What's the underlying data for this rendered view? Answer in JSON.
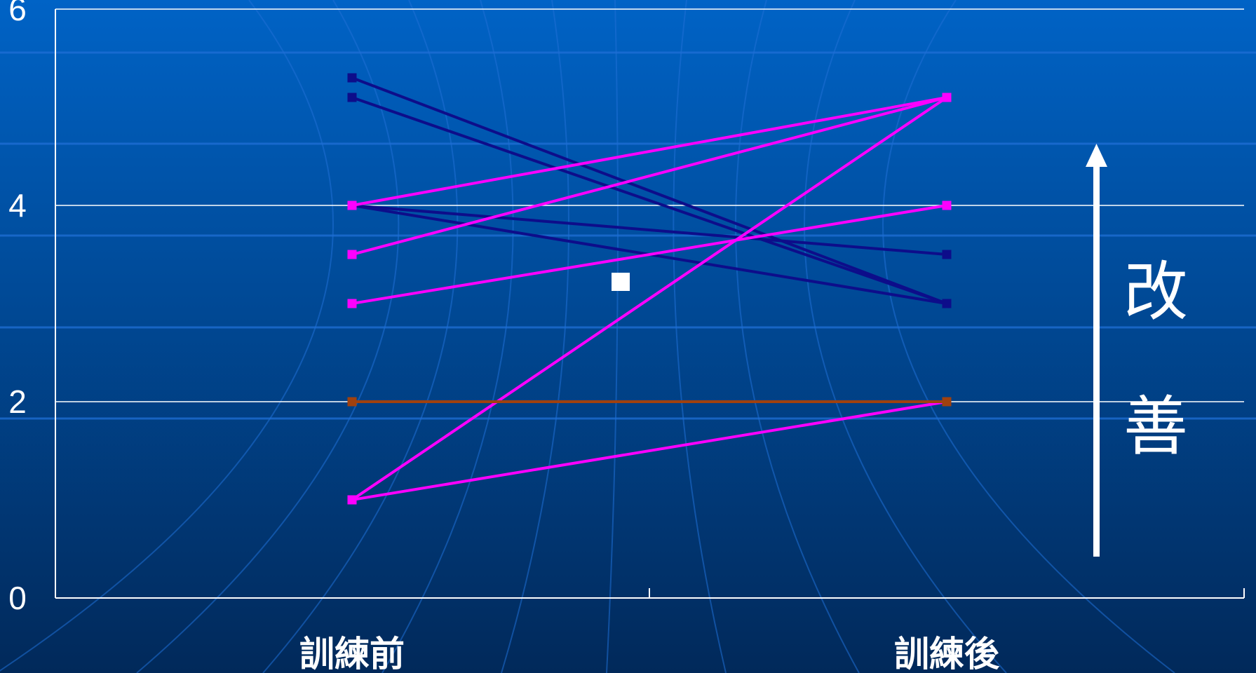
{
  "colors": {
    "background_top": "#0063c6",
    "background_bottom": "#01295a",
    "decor_lines": "#1f6fd6",
    "axis": "#ffffff",
    "decreased": "#0d0d8a",
    "increased": "#ff00ff",
    "unchanged": "#a0410f"
  },
  "chart_data": {
    "type": "line",
    "categories": [
      "訓練前",
      "訓練後"
    ],
    "ylim": [
      0,
      6
    ],
    "y_ticks": [
      "0",
      "2",
      "4",
      "6"
    ],
    "grid": true,
    "legend_marker": "square",
    "series": [
      {
        "values": [
          5.3,
          3.0
        ],
        "color": "#0d0d8a"
      },
      {
        "values": [
          5.1,
          3.0
        ],
        "color": "#0d0d8a"
      },
      {
        "values": [
          4.0,
          3.5
        ],
        "color": "#0d0d8a"
      },
      {
        "values": [
          4.0,
          3.0
        ],
        "color": "#0d0d8a"
      },
      {
        "values": [
          4.0,
          5.1
        ],
        "color": "#ff00ff"
      },
      {
        "values": [
          3.5,
          5.1
        ],
        "color": "#ff00ff"
      },
      {
        "values": [
          3.0,
          4.0
        ],
        "color": "#ff00ff"
      },
      {
        "values": [
          1.0,
          5.1
        ],
        "color": "#ff00ff"
      },
      {
        "values": [
          1.0,
          2.0
        ],
        "color": "#ff00ff"
      },
      {
        "values": [
          2.0,
          2.0
        ],
        "color": "#a0410f"
      }
    ],
    "annotation": {
      "text_top": "改",
      "text_bottom": "善",
      "arrow_icon": "up-arrow-icon"
    }
  }
}
